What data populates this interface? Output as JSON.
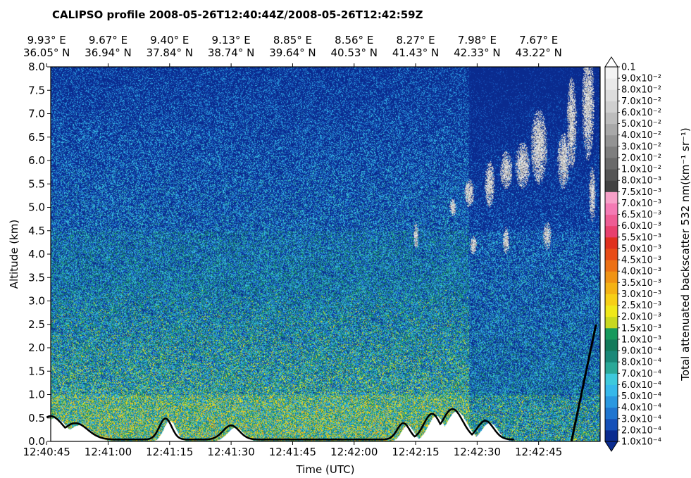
{
  "chart_data": {
    "type": "heatmap",
    "title": "CALIPSO profile 2008-05-26T12:40:44Z/2008-05-26T12:42:59Z",
    "xlabel": "Time (UTC)",
    "ylabel": "Altitude (km)",
    "colorbar_label": "Total attenuated backscatter 532 nm(km⁻¹ sr⁻¹)",
    "x_ticks": [
      "12:40:45",
      "12:41:00",
      "12:41:15",
      "12:41:30",
      "12:41:45",
      "12:42:00",
      "12:42:15",
      "12:42:30",
      "12:42:45"
    ],
    "top_ticks": [
      {
        "lon": "9.93° E",
        "lat": "36.05° N"
      },
      {
        "lon": "9.67° E",
        "lat": "36.94° N"
      },
      {
        "lon": "9.40° E",
        "lat": "37.84° N"
      },
      {
        "lon": "9.13° E",
        "lat": "38.74° N"
      },
      {
        "lon": "8.85° E",
        "lat": "39.64° N"
      },
      {
        "lon": "8.56° E",
        "lat": "40.53° N"
      },
      {
        "lon": "8.27° E",
        "lat": "41.43° N"
      },
      {
        "lon": "7.98° E",
        "lat": "42.33° N"
      },
      {
        "lon": "7.67° E",
        "lat": "43.22° N"
      }
    ],
    "y_ticks": [
      "0.0",
      "0.5",
      "1.0",
      "1.5",
      "2.0",
      "2.5",
      "3.0",
      "3.5",
      "4.0",
      "4.5",
      "5.0",
      "5.5",
      "6.0",
      "6.5",
      "7.0",
      "7.5",
      "8.0"
    ],
    "ylim": [
      0.0,
      8.0
    ],
    "colorbar": {
      "levels": [
        {
          "value": "1.0x10⁻⁴",
          "color": "#0a2b8f"
        },
        {
          "value": "2.0x10⁻⁴",
          "color": "#1550b8"
        },
        {
          "value": "3.0x10⁻⁴",
          "color": "#1f75d0"
        },
        {
          "value": "4.0x10⁻⁴",
          "color": "#2a98e0"
        },
        {
          "value": "5.0x10⁻⁴",
          "color": "#36b8ea"
        },
        {
          "value": "6.0x10⁻⁴",
          "color": "#3ec9dc"
        },
        {
          "value": "7.0x10⁻⁴",
          "color": "#2aa898"
        },
        {
          "value": "8.0x10⁻⁴",
          "color": "#1a8878"
        },
        {
          "value": "9.0x10⁻⁴",
          "color": "#137a5a"
        },
        {
          "value": "1.0x10⁻³",
          "color": "#17995c"
        },
        {
          "value": "1.5x10⁻³",
          "color": "#c8d820"
        },
        {
          "value": "2.0x10⁻³",
          "color": "#f0e81a"
        },
        {
          "value": "2.5x10⁻³",
          "color": "#f7cf16"
        },
        {
          "value": "3.0x10⁻³",
          "color": "#f4b214"
        },
        {
          "value": "3.5x10⁻³",
          "color": "#f09314"
        },
        {
          "value": "4.0x10⁻³",
          "color": "#ec7014"
        },
        {
          "value": "4.5x10⁻³",
          "color": "#e84c18"
        },
        {
          "value": "5.0x10⁻³",
          "color": "#e0301e"
        },
        {
          "value": "5.5x10⁻³",
          "color": "#e8406e"
        },
        {
          "value": "6.0x10⁻³",
          "color": "#ee5c94"
        },
        {
          "value": "6.5x10⁻³",
          "color": "#f47ab4"
        },
        {
          "value": "7.0x10⁻³",
          "color": "#f7a0c8"
        },
        {
          "value": "7.5x10⁻³",
          "color": "#424242"
        },
        {
          "value": "8.0x10⁻³",
          "color": "#555555"
        },
        {
          "value": "1.0x10⁻²",
          "color": "#6a6a6a"
        },
        {
          "value": "2.0x10⁻²",
          "color": "#7e7e7e"
        },
        {
          "value": "3.0x10⁻²",
          "color": "#939393"
        },
        {
          "value": "4.0x10⁻²",
          "color": "#a8a8a8"
        },
        {
          "value": "5.0x10⁻²",
          "color": "#bcbcbc"
        },
        {
          "value": "6.0x10⁻²",
          "color": "#cfcfcf"
        },
        {
          "value": "7.0x10⁻²",
          "color": "#dddddd"
        },
        {
          "value": "8.0x10⁻²",
          "color": "#e9e9e9"
        },
        {
          "value": "9.0x10⁻²",
          "color": "#f4f4f4"
        },
        {
          "value": "0.1",
          "color": "#ffffff"
        }
      ]
    },
    "surface_line_color": "#000000"
  }
}
